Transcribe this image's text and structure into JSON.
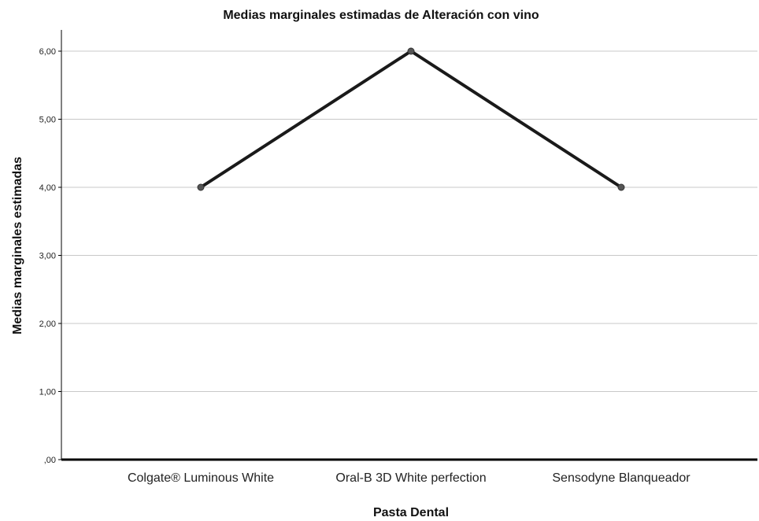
{
  "chart_data": {
    "type": "line",
    "title": "Medias marginales estimadas de Alteración con vino",
    "xlabel": "Pasta Dental",
    "ylabel": "Medias marginales estimadas",
    "categories": [
      "Colgate® Luminous White",
      "Oral-B 3D White perfection",
      "Sensodyne Blanqueador"
    ],
    "series": [
      {
        "values": [
          4.0,
          6.0,
          4.0
        ]
      }
    ],
    "ylim": [
      0,
      6
    ],
    "yticks": [
      0,
      1,
      2,
      3,
      4,
      5,
      6
    ],
    "ytick_labels": [
      ",00",
      "1,00",
      "2,00",
      "3,00",
      "4,00",
      "5,00",
      "6,00"
    ],
    "grid": true,
    "legend": "none",
    "colors": {
      "line": "#1a1a1a",
      "marker": "#555555",
      "grid": "#c8c8c8",
      "axis": "#000000"
    }
  }
}
